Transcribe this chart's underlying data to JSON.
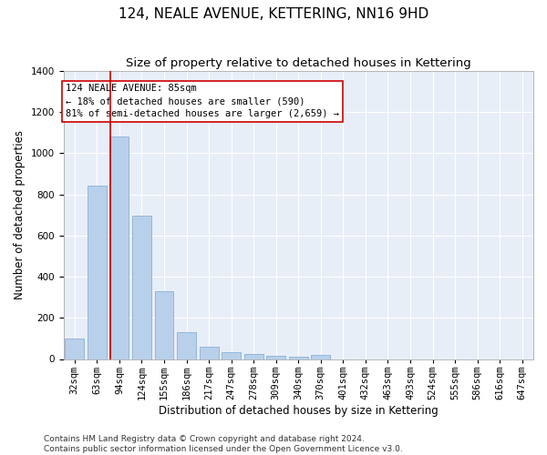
{
  "title": "124, NEALE AVENUE, KETTERING, NN16 9HD",
  "subtitle": "Size of property relative to detached houses in Kettering",
  "xlabel": "Distribution of detached houses by size in Kettering",
  "ylabel": "Number of detached properties",
  "categories": [
    "32sqm",
    "63sqm",
    "94sqm",
    "124sqm",
    "155sqm",
    "186sqm",
    "217sqm",
    "247sqm",
    "278sqm",
    "309sqm",
    "340sqm",
    "370sqm",
    "401sqm",
    "432sqm",
    "463sqm",
    "493sqm",
    "524sqm",
    "555sqm",
    "586sqm",
    "616sqm",
    "647sqm"
  ],
  "values": [
    100,
    845,
    1080,
    695,
    330,
    130,
    60,
    35,
    25,
    17,
    12,
    18,
    0,
    0,
    0,
    0,
    0,
    0,
    0,
    0,
    0
  ],
  "bar_color": "#b8d0ea",
  "bar_edge_color": "#8ab0d5",
  "background_color": "#e8eef8",
  "grid_color": "#ffffff",
  "vline_x_data": 1.6,
  "vline_color": "#cc0000",
  "annotation_text": "124 NEALE AVENUE: 85sqm\n← 18% of detached houses are smaller (590)\n81% of semi-detached houses are larger (2,659) →",
  "annotation_box_color": "#cc0000",
  "ylim": [
    0,
    1400
  ],
  "yticks": [
    0,
    200,
    400,
    600,
    800,
    1000,
    1200,
    1400
  ],
  "xlim": [
    -0.5,
    20.5
  ],
  "footer_line1": "Contains HM Land Registry data © Crown copyright and database right 2024.",
  "footer_line2": "Contains public sector information licensed under the Open Government Licence v3.0.",
  "title_fontsize": 11,
  "subtitle_fontsize": 9.5,
  "axis_label_fontsize": 8.5,
  "tick_fontsize": 7.5,
  "annotation_fontsize": 7.5,
  "footer_fontsize": 6.5
}
